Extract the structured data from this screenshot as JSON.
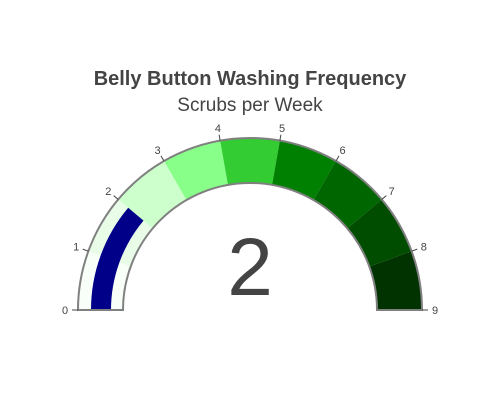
{
  "chart_data": {
    "type": "gauge",
    "title": "Belly Button Washing Frequency",
    "subtitle": "Scrubs per Week",
    "value": 2,
    "value_label": "2",
    "range": [
      0,
      9
    ],
    "tick_values": [
      0,
      1,
      2,
      3,
      4,
      5,
      6,
      7,
      8,
      9
    ],
    "tick_labels": [
      "0",
      "1",
      "2",
      "3",
      "4",
      "5",
      "6",
      "7",
      "8",
      "9"
    ],
    "steps": [
      {
        "range": [
          0,
          1
        ],
        "color": "#f8fff8"
      },
      {
        "range": [
          1,
          2
        ],
        "color": "#e8fce8"
      },
      {
        "range": [
          2,
          3
        ],
        "color": "#ccffcc"
      },
      {
        "range": [
          3,
          4
        ],
        "color": "#88ff88"
      },
      {
        "range": [
          4,
          5
        ],
        "color": "#33cc33"
      },
      {
        "range": [
          5,
          6
        ],
        "color": "#008000"
      },
      {
        "range": [
          6,
          7
        ],
        "color": "#006600"
      },
      {
        "range": [
          7,
          8
        ],
        "color": "#004d00"
      },
      {
        "range": [
          8,
          9
        ],
        "color": "#003300"
      }
    ],
    "bar_color": "#000088",
    "border_color": "#808080",
    "tick_color": "#444444"
  }
}
